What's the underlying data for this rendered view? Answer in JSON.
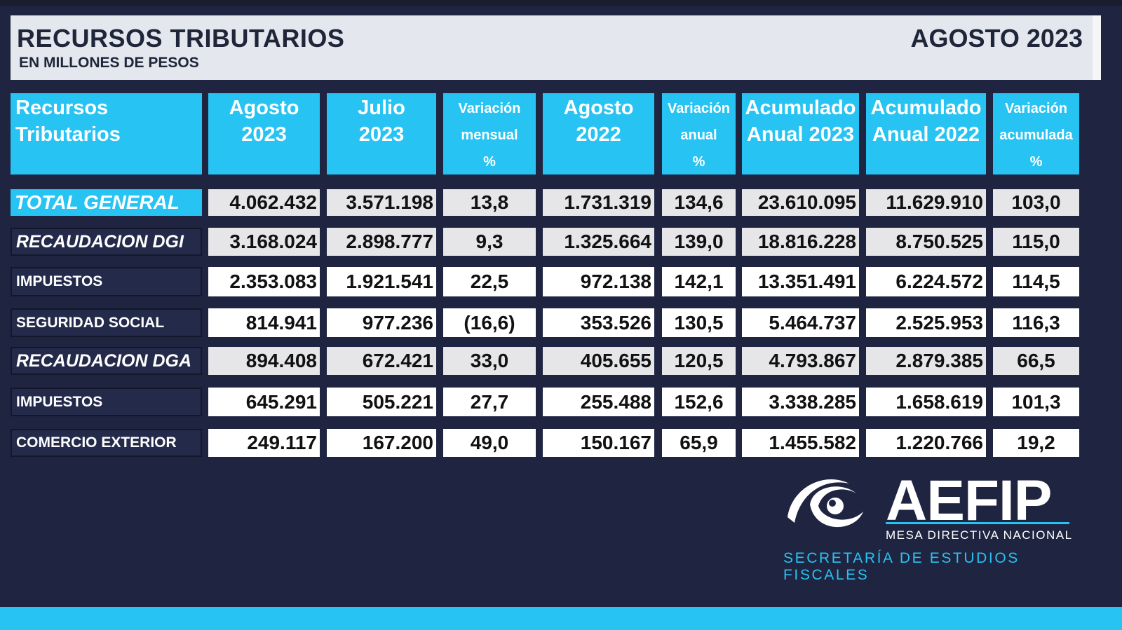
{
  "header": {
    "title": "RECURSOS TRIBUTARIOS",
    "subtitle": "EN MILLONES DE PESOS",
    "period": "AGOSTO 2023"
  },
  "table": {
    "columns": [
      {
        "line1": "Recursos",
        "line2": "Tributarios",
        "line3": ""
      },
      {
        "line1": "Agosto",
        "line2": "2023",
        "line3": ""
      },
      {
        "line1": "Julio",
        "line2": "2023",
        "line3": ""
      },
      {
        "line1": "Variación",
        "line2": "mensual",
        "line3": "%"
      },
      {
        "line1": "Agosto",
        "line2": "2022",
        "line3": ""
      },
      {
        "line1": "Variación",
        "line2": "anual",
        "line3": "%"
      },
      {
        "line1": "Acumulado",
        "line2": "Anual 2023",
        "line3": ""
      },
      {
        "line1": "Acumulado",
        "line2": "Anual 2022",
        "line3": ""
      },
      {
        "line1": "Variación",
        "line2": "acumulada",
        "line3": "%"
      }
    ],
    "rows": [
      {
        "label": "TOTAL GENERAL",
        "values": [
          "4.062.432",
          "3.571.198",
          "13,8",
          "1.731.319",
          "134,6",
          "23.610.095",
          "11.629.910",
          "103,0"
        ]
      },
      {
        "label": "RECAUDACION DGI",
        "values": [
          "3.168.024",
          "2.898.777",
          "9,3",
          "1.325.664",
          "139,0",
          "18.816.228",
          "8.750.525",
          "115,0"
        ]
      },
      {
        "label": "IMPUESTOS",
        "values": [
          "2.353.083",
          "1.921.541",
          "22,5",
          "972.138",
          "142,1",
          "13.351.491",
          "6.224.572",
          "114,5"
        ]
      },
      {
        "label": "SEGURIDAD SOCIAL",
        "values": [
          "814.941",
          "977.236",
          "(16,6)",
          "353.526",
          "130,5",
          "5.464.737",
          "2.525.953",
          "116,3"
        ]
      },
      {
        "label": "RECAUDACION DGA",
        "values": [
          "894.408",
          "672.421",
          "33,0",
          "405.655",
          "120,5",
          "4.793.867",
          "2.879.385",
          "66,5"
        ]
      },
      {
        "label": "IMPUESTOS",
        "values": [
          "645.291",
          "505.221",
          "27,7",
          "255.488",
          "152,6",
          "3.338.285",
          "1.658.619",
          "101,3"
        ]
      },
      {
        "label": "COMERCIO EXTERIOR",
        "values": [
          "249.117",
          "167.200",
          "49,0",
          "150.167",
          "65,9",
          "1.455.582",
          "1.220.766",
          "19,2"
        ]
      }
    ]
  },
  "logo": {
    "name": "AEFIP",
    "tagline": "MESA DIRECTIVA NACIONAL",
    "department": "SECRETARÍA DE ESTUDIOS FISCALES"
  },
  "colors": {
    "background": "#1f2440",
    "accent": "#27c3f2",
    "header_band": "#e4e8ee"
  }
}
